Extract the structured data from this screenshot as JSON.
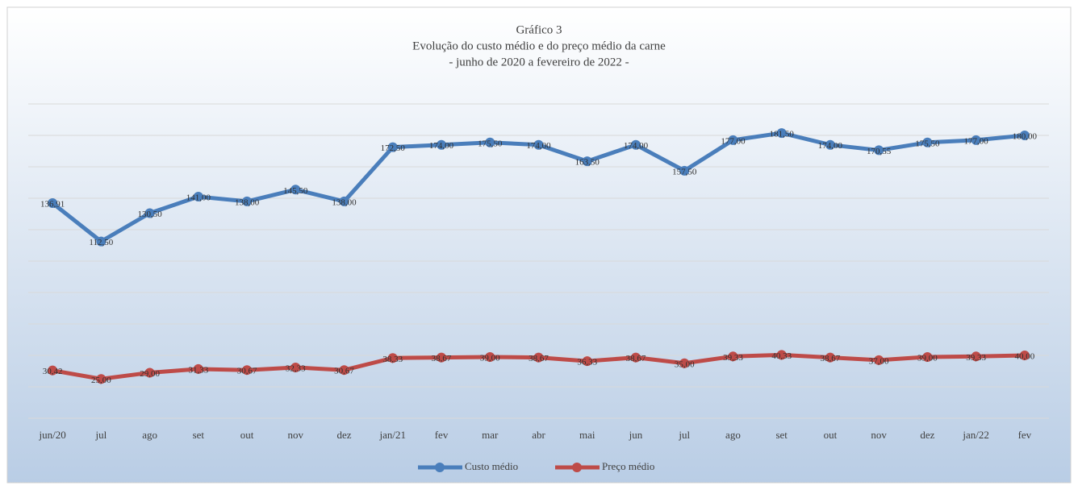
{
  "chart_data": {
    "type": "line",
    "title": [
      "Gráfico 3",
      "Evolução do custo médio e do preço médio da carne",
      "- junho de 2020 a fevereiro de 2022 -"
    ],
    "categories": [
      "jun/20",
      "jul",
      "ago",
      "set",
      "out",
      "nov",
      "dez",
      "jan/21",
      "fev",
      "mar",
      "abr",
      "mai",
      "jun",
      "jul",
      "ago",
      "set",
      "out",
      "nov",
      "dez",
      "jan/22",
      "fev"
    ],
    "series": [
      {
        "name": "Custo médio",
        "color": "#4a7ebb",
        "values": [
          136.91,
          112.5,
          130.5,
          141,
          138,
          145.5,
          138,
          172.5,
          174,
          175.5,
          174,
          163.5,
          174,
          157.5,
          177,
          181.5,
          174,
          170.55,
          175.5,
          177,
          180
        ],
        "value_labels": [
          "136,91",
          "112,50",
          "130,50",
          "141,00",
          "138,00",
          "145,50",
          "138,00",
          "172,50",
          "174,00",
          "175,50",
          "174,00",
          "163,50",
          "174,00",
          "157,50",
          "177,00",
          "181,50",
          "174,00",
          "170,55",
          "175,50",
          "177,00",
          "180,00"
        ]
      },
      {
        "name": "Preço médio",
        "color": "#be4b48",
        "values": [
          30.42,
          25,
          29,
          31.33,
          30.67,
          32.33,
          30.67,
          38.33,
          38.67,
          39,
          38.67,
          36.33,
          38.67,
          35,
          39.33,
          40.33,
          38.67,
          37,
          39,
          39.33,
          40
        ],
        "value_labels": [
          "30,42",
          "25,00",
          "29,00",
          "31,33",
          "30,67",
          "32,33",
          "30,67",
          "38,33",
          "38,67",
          "39,00",
          "38,67",
          "36,33",
          "38,67",
          "35,00",
          "39,33",
          "40,33",
          "38,67",
          "37,00",
          "39,00",
          "39,33",
          "40,00"
        ]
      }
    ],
    "ylim": [
      0,
      200
    ],
    "yticks": [
      0,
      20,
      40,
      60,
      80,
      100,
      120,
      140,
      160,
      180,
      200
    ],
    "grid": true,
    "legend": "bottom"
  }
}
